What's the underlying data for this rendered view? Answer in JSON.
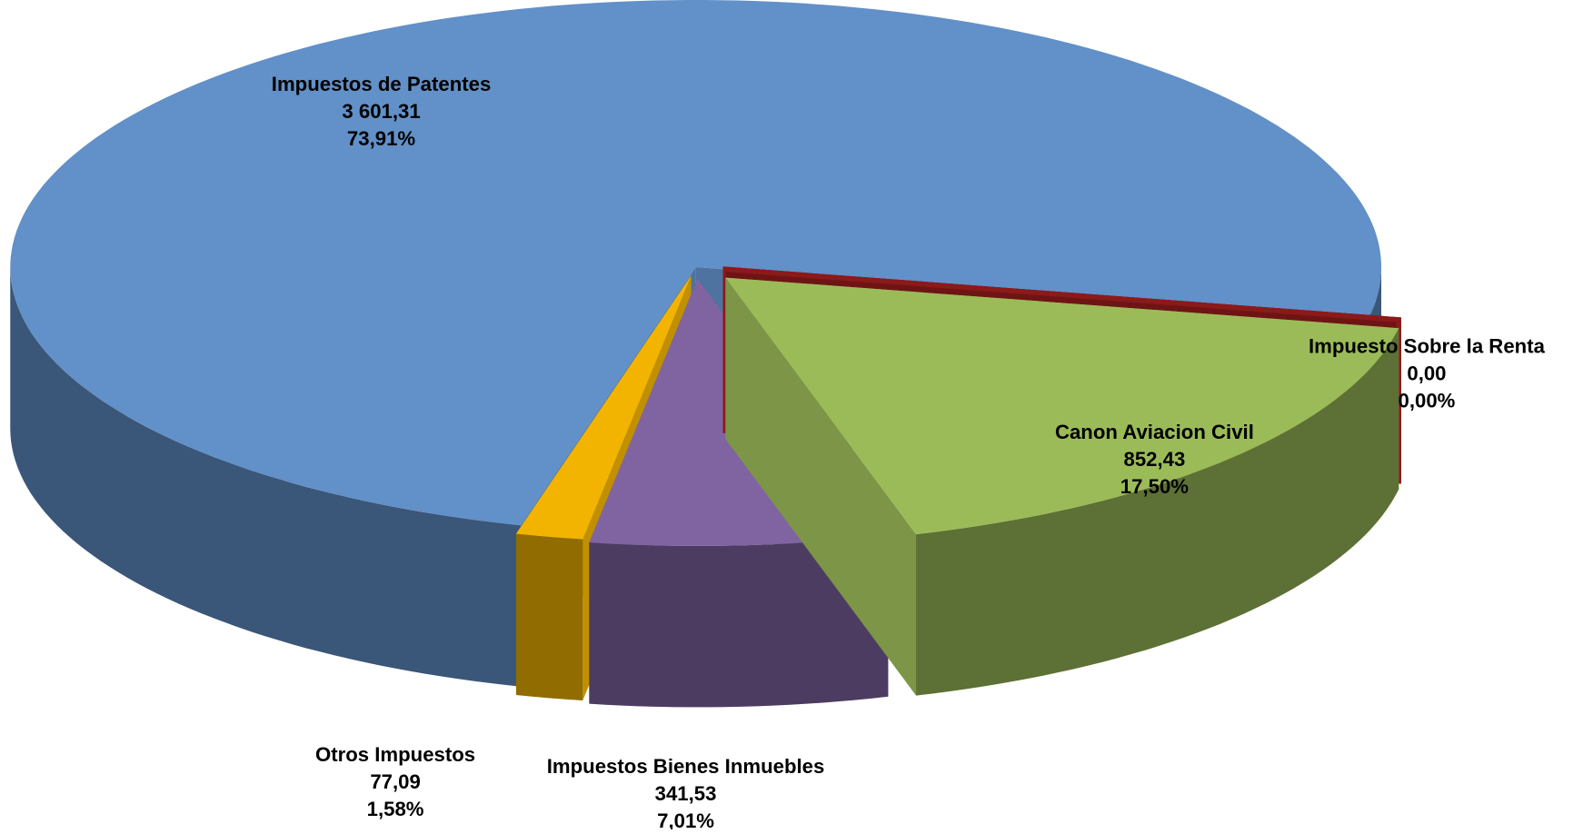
{
  "chart_data": {
    "type": "pie",
    "categories": [
      "Impuesto Sobre la Renta",
      "Canon Aviacion Civil",
      "Impuestos Bienes Inmuebles",
      "Otros Impuestos",
      "Impuestos de Patentes"
    ],
    "values": [
      0.0,
      852.43,
      341.53,
      77.09,
      3601.31
    ],
    "value_labels": [
      "0,00",
      "852,43",
      "341,53",
      "77,09",
      "3 601,31"
    ],
    "percent_labels": [
      "0,00%",
      "17,50%",
      "7,01%",
      "1,58%",
      "73,91%"
    ],
    "colors": [
      "#8b1a1a",
      "#9bbb59",
      "#8064a2",
      "#f2b400",
      "#6290c8"
    ]
  }
}
